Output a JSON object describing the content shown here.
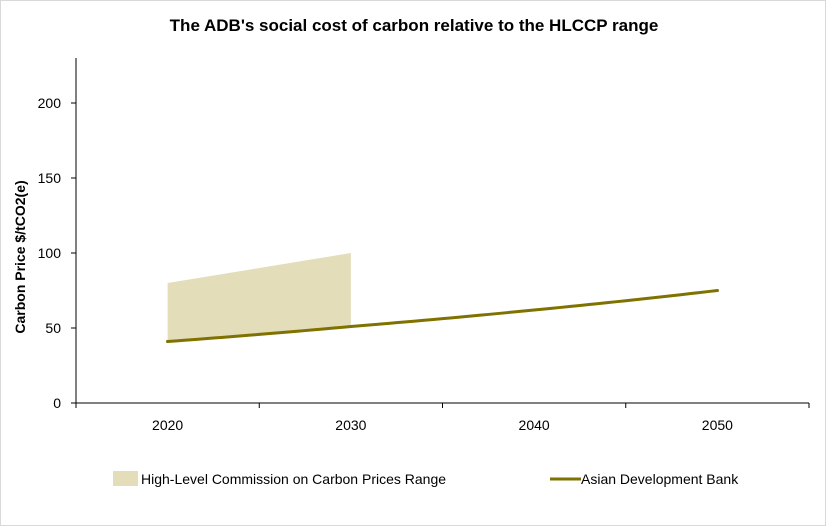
{
  "chart_data": {
    "type": "line",
    "title": "The ADB's social cost of carbon relative to the HLCCP range",
    "xlabel": "",
    "ylabel": "Carbon Price $/tCO2(e)",
    "xlim": [
      2015,
      2055
    ],
    "ylim": [
      0,
      230
    ],
    "x_ticks": [
      "2020",
      "2030",
      "2040",
      "2050"
    ],
    "x_tick_values": [
      2020,
      2030,
      2040,
      2050
    ],
    "y_ticks": [
      "0",
      "50",
      "100",
      "150",
      "200"
    ],
    "y_tick_values": [
      0,
      50,
      100,
      150,
      200
    ],
    "grid": false,
    "legend_position": "bottom",
    "range_band": {
      "name": "High-Level Commission on Carbon Prices Range",
      "x": [
        2020,
        2030
      ],
      "low": [
        41,
        51
      ],
      "high": [
        80,
        100
      ],
      "color": "#e3ddb9"
    },
    "series": [
      {
        "name": "Asian Development Bank",
        "x": [
          2020,
          2030,
          2040,
          2050
        ],
        "values": [
          41,
          51,
          62,
          75
        ],
        "color": "#7f7200"
      }
    ]
  }
}
